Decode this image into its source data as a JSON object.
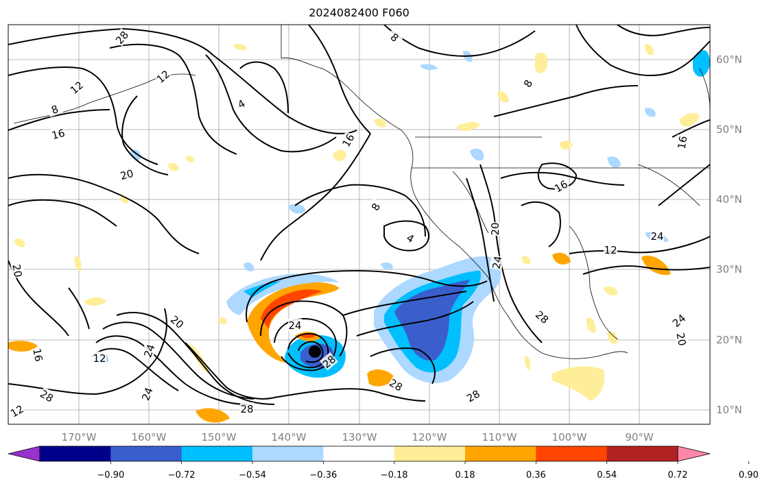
{
  "title": "2024082400 F060",
  "map": {
    "lon_labels": [
      "170°W",
      "160°W",
      "150°W",
      "140°W",
      "130°W",
      "120°W",
      "110°W",
      "100°W",
      "90°W"
    ],
    "lat_labels": [
      "60°N",
      "50°N",
      "40°N",
      "30°N",
      "20°N",
      "10°N"
    ],
    "grid": true,
    "contour_color": "#000000",
    "contour_labels": [
      "12",
      "8",
      "16",
      "20",
      "20",
      "16",
      "12",
      "28",
      "24",
      "20",
      "24",
      "12",
      "8",
      "4",
      "16",
      "8",
      "4",
      "28",
      "28",
      "28",
      "24",
      "28",
      "24",
      "16",
      "12",
      "24",
      "20",
      "8",
      "16",
      "20",
      "24",
      "12",
      "28",
      "28"
    ]
  },
  "colorbar": {
    "colors": [
      "#9932cc",
      "#00008b",
      "#3a5fcd",
      "#00bfff",
      "#add8ff",
      "#ffffff",
      "#ffee99",
      "#ffa500",
      "#ff4500",
      "#b22222",
      "#ff88aa"
    ],
    "tick_labels": [
      "−0.90",
      "−0.72",
      "−0.54",
      "−0.36",
      "−0.18",
      "0.18",
      "0.36",
      "0.54",
      "0.72",
      "0.90"
    ],
    "extend": "both"
  }
}
